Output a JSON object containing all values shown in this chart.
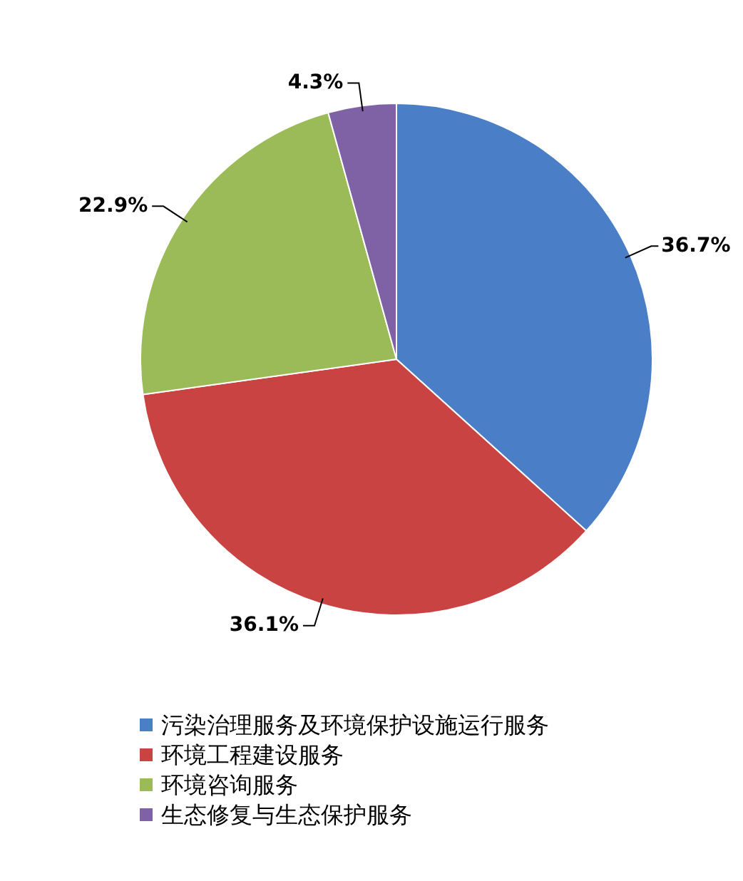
{
  "chart_data": {
    "type": "pie",
    "categories": [
      "污染治理服务及环境保护设施运行服务",
      "环境工程建设服务",
      "环境咨询服务",
      "生态修复与生态保护服务"
    ],
    "values": [
      36.7,
      36.1,
      22.9,
      4.3
    ],
    "value_labels": [
      "36.7%",
      "36.1%",
      "22.9%",
      "4.3%"
    ],
    "colors": [
      "#4a7ec6",
      "#c94343",
      "#9bbb59",
      "#7f62a5"
    ],
    "legend": "bottom"
  }
}
